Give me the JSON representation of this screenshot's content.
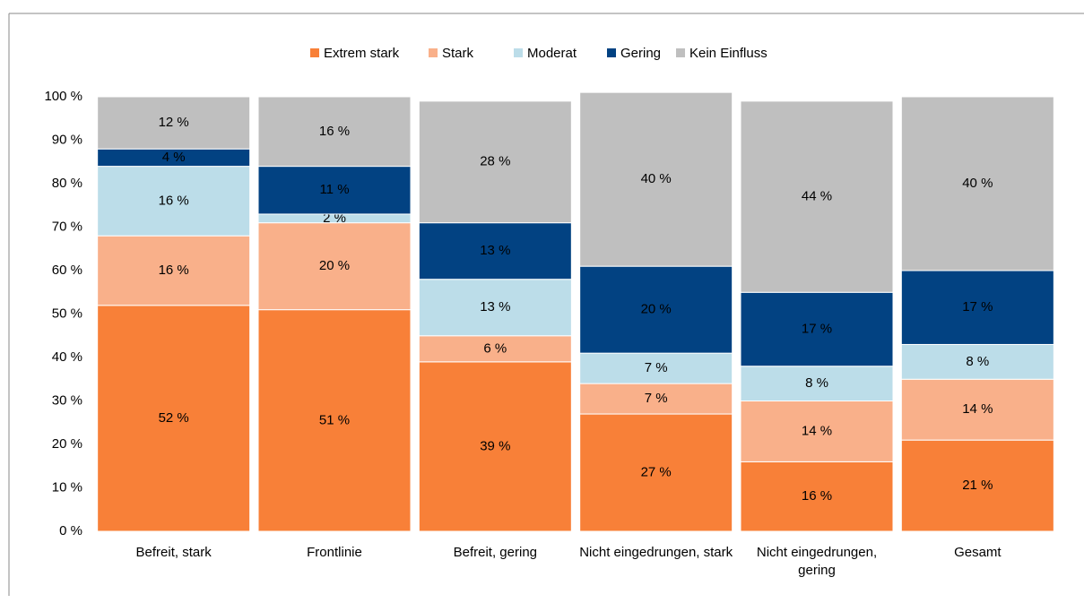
{
  "chart_data": {
    "type": "stacked_bar",
    "categories": [
      "Befreit, stark",
      "Frontlinie",
      "Befreit, gering",
      "Nicht eingedrungen, stark",
      "Nicht eingedrungen, gering",
      "Gesamt"
    ],
    "series": [
      {
        "name": "Extrem stark",
        "color": "#f88038",
        "values": [
          52,
          51,
          39,
          27,
          16,
          21
        ],
        "value_labels": [
          "52 %",
          "51 %",
          "39 %",
          "27 %",
          "16 %",
          "21 %"
        ]
      },
      {
        "name": "Stark",
        "color": "#f9b08a",
        "values": [
          16,
          20,
          6,
          7,
          14,
          14
        ],
        "value_labels": [
          "16 %",
          "20 %",
          "6 %",
          "7 %",
          "14 %",
          "14 %"
        ]
      },
      {
        "name": "Moderat",
        "color": "#bcdde9",
        "values": [
          16,
          2,
          13,
          7,
          8,
          8
        ],
        "value_labels": [
          "16 %",
          "2 %",
          "13 %",
          "7 %",
          "8 %",
          "8 %"
        ]
      },
      {
        "name": "Gering",
        "color": "#024282",
        "values": [
          4,
          11,
          13,
          20,
          17,
          17
        ],
        "value_labels": [
          "4 %",
          "11 %",
          "13 %",
          "20 %",
          "17 %",
          "17 %"
        ]
      },
      {
        "name": "Kein Einfluss",
        "color": "#bfbfbf",
        "values": [
          12,
          16,
          28,
          40,
          44,
          40
        ],
        "value_labels": [
          "12 %",
          "16 %",
          "28 %",
          "40 %",
          "44 %",
          "40 %"
        ]
      }
    ],
    "ylim": [
      0,
      100
    ],
    "yticks": [
      {
        "value": 0,
        "label": "0 %"
      },
      {
        "value": 10,
        "label": "10 %"
      },
      {
        "value": 20,
        "label": "20 %"
      },
      {
        "value": 30,
        "label": "30 %"
      },
      {
        "value": 40,
        "label": "40 %"
      },
      {
        "value": 50,
        "label": "50 %"
      },
      {
        "value": 60,
        "label": "60 %"
      },
      {
        "value": 70,
        "label": "70 %"
      },
      {
        "value": 80,
        "label": "80 %"
      },
      {
        "value": 90,
        "label": "90 %"
      },
      {
        "value": 100,
        "label": "100 %"
      }
    ],
    "legend": "top",
    "grid": false
  }
}
